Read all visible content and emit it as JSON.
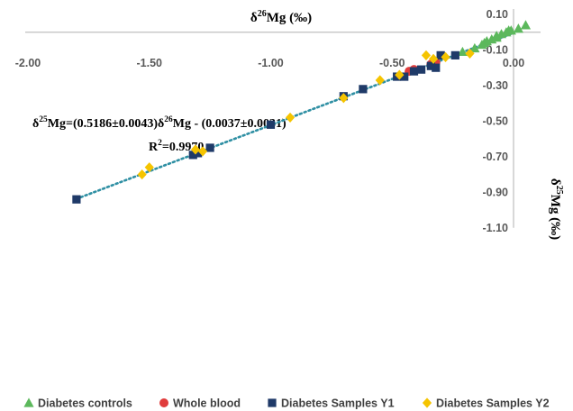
{
  "chart_data": {
    "type": "scatter",
    "x_axis": {
      "label_main": "δ",
      "label_sup": "26",
      "label_rest": "Mg (‰)",
      "range": [
        -2.0,
        0.1
      ],
      "ticks": [
        "-2.00",
        "-1.50",
        "-1.00",
        "-0.50",
        "0.00"
      ],
      "tick_values": [
        -2.0,
        -1.5,
        -1.0,
        -0.5,
        0.0
      ]
    },
    "y_axis": {
      "label_main": "δ",
      "label_sup": "25",
      "label_rest": "Mg (‰)",
      "range": [
        -1.1,
        0.1
      ],
      "ticks": [
        "0.10",
        "-0.10",
        "-0.30",
        "-0.50",
        "-0.70",
        "-0.90",
        "-1.10"
      ],
      "tick_values": [
        0.1,
        -0.1,
        -0.3,
        -0.5,
        -0.7,
        -0.9,
        -1.1
      ]
    },
    "grid": false,
    "legend_position": "bottom",
    "annotation": {
      "eq_main": "δ",
      "eq_sup1": "25",
      "eq_mid": "Mg=(0.5186±0.0043)δ",
      "eq_sup2": "26",
      "eq_rest": "Mg - (0.0037±0.0031)",
      "r2_main": "R",
      "r2_sup": "2",
      "r2_rest": "=0.9970"
    },
    "trendline": {
      "slope": 0.5186,
      "intercept": -0.0037,
      "x_range": [
        -1.8,
        0.0
      ],
      "color": "#2e8fa3"
    },
    "series": [
      {
        "name": "Diabetes controls",
        "marker": "triangle",
        "color": "#5cb85c",
        "points": [
          [
            -0.21,
            -0.11
          ],
          [
            -0.16,
            -0.09
          ],
          [
            -0.13,
            -0.07
          ],
          [
            -0.11,
            -0.05
          ],
          [
            -0.09,
            -0.04
          ],
          [
            -0.07,
            -0.02
          ],
          [
            -0.05,
            -0.01
          ],
          [
            -0.03,
            0.0
          ],
          [
            -0.02,
            0.01
          ],
          [
            0.02,
            0.02
          ],
          [
            0.05,
            0.04
          ],
          [
            -0.01,
            0.01
          ],
          [
            -0.07,
            -0.03
          ],
          [
            -0.12,
            -0.06
          ]
        ]
      },
      {
        "name": "Whole blood",
        "marker": "circle",
        "color": "#e03c3c",
        "points": [
          [
            -0.43,
            -0.22
          ],
          [
            -0.41,
            -0.21
          ],
          [
            -0.34,
            -0.18
          ],
          [
            -0.32,
            -0.17
          ]
        ]
      },
      {
        "name": "Diabetes Samples Y1",
        "marker": "square",
        "color": "#1f3a68",
        "points": [
          [
            -1.8,
            -0.94
          ],
          [
            -1.32,
            -0.69
          ],
          [
            -1.3,
            -0.68
          ],
          [
            -1.25,
            -0.65
          ],
          [
            -1.0,
            -0.52
          ],
          [
            -0.7,
            -0.36
          ],
          [
            -0.62,
            -0.32
          ],
          [
            -0.48,
            -0.25
          ],
          [
            -0.45,
            -0.25
          ],
          [
            -0.41,
            -0.22
          ],
          [
            -0.38,
            -0.21
          ],
          [
            -0.34,
            -0.19
          ],
          [
            -0.32,
            -0.2
          ],
          [
            -0.3,
            -0.13
          ],
          [
            -0.24,
            -0.13
          ]
        ]
      },
      {
        "name": "Diabetes Samples Y2",
        "marker": "diamond",
        "color": "#f5c400",
        "points": [
          [
            -1.53,
            -0.8
          ],
          [
            -1.5,
            -0.76
          ],
          [
            -1.31,
            -0.66
          ],
          [
            -1.28,
            -0.67
          ],
          [
            -0.92,
            -0.48
          ],
          [
            -0.7,
            -0.37
          ],
          [
            -0.55,
            -0.27
          ],
          [
            -0.47,
            -0.24
          ],
          [
            -0.36,
            -0.13
          ],
          [
            -0.33,
            -0.15
          ],
          [
            -0.28,
            -0.14
          ],
          [
            -0.18,
            -0.12
          ]
        ]
      }
    ]
  }
}
